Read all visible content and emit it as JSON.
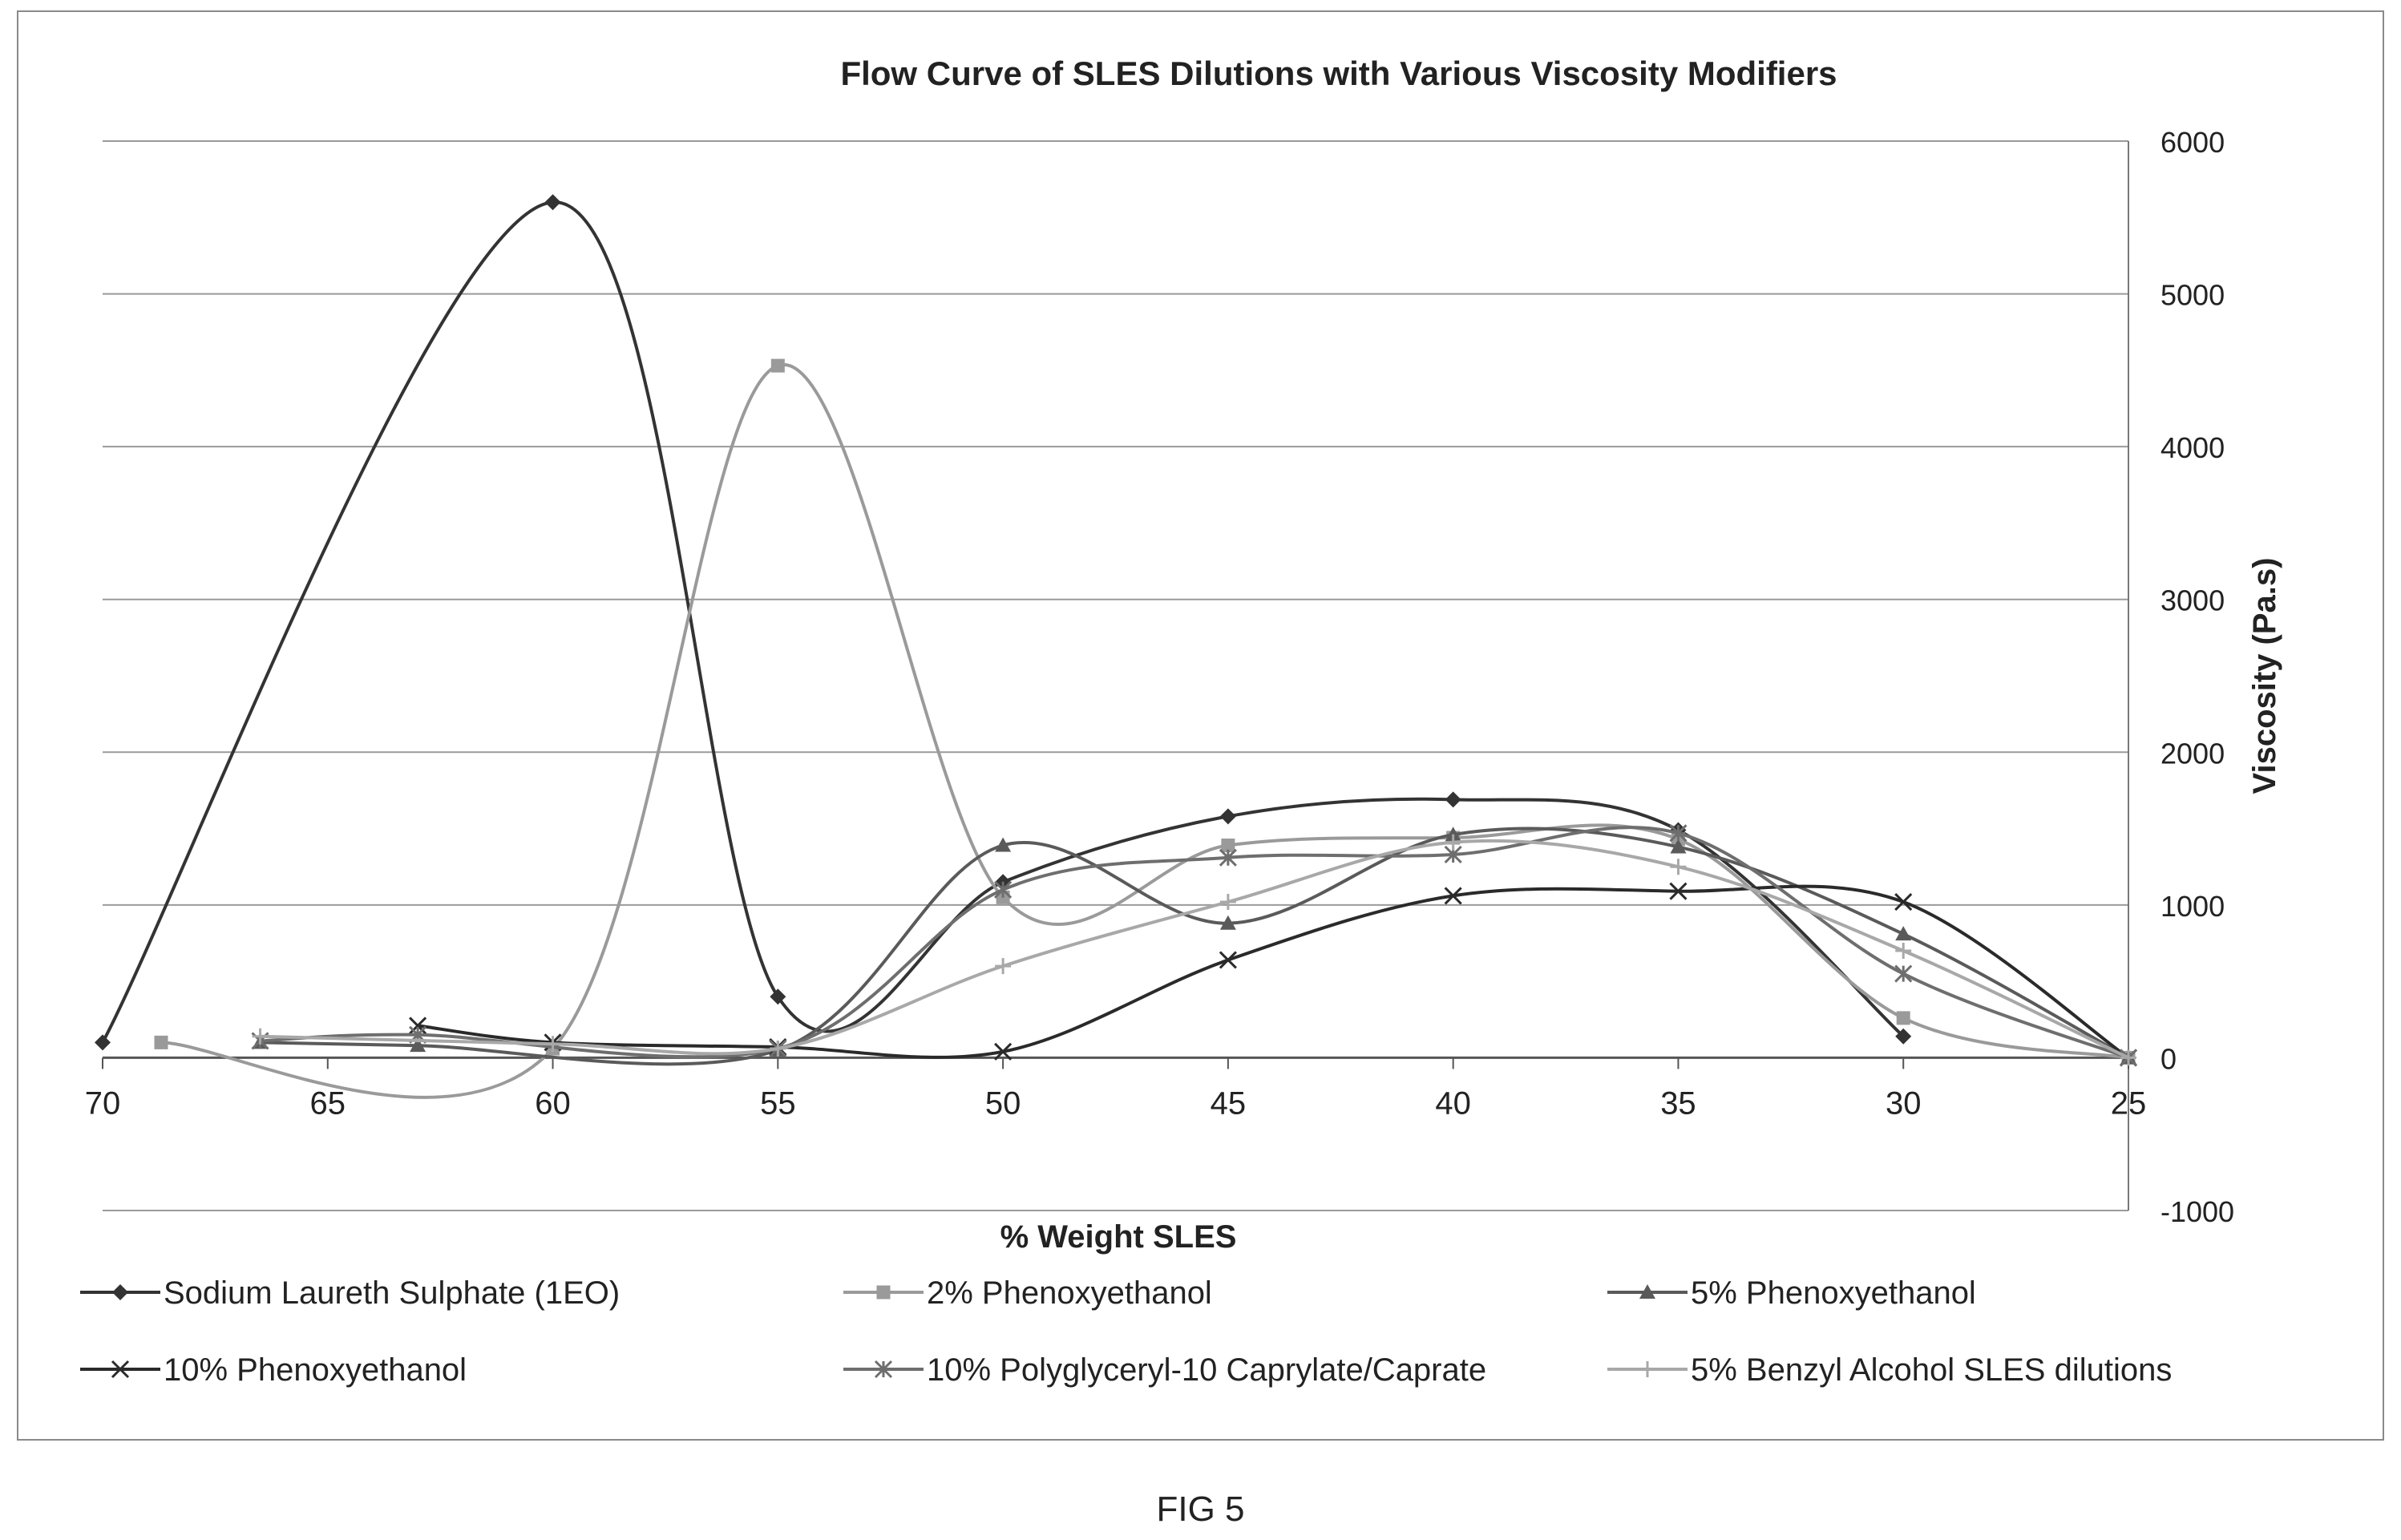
{
  "chart_data": {
    "type": "line",
    "title": "Flow Curve of SLES Dilutions with Various Viscosity Modifiers",
    "xlabel": "% Weight SLES",
    "ylabel": "Viscosity (Pa.s)",
    "xlim": [
      70,
      25
    ],
    "x_ticks": [
      70,
      65,
      60,
      55,
      50,
      45,
      40,
      35,
      30,
      25
    ],
    "ylim": [
      -1000,
      6000
    ],
    "y_ticks": [
      -1000,
      0,
      1000,
      2000,
      3000,
      4000,
      5000,
      6000
    ],
    "y_axis_side": "right",
    "x_axis_crosses_at": 0,
    "grid": "horizontal",
    "smoothed": true,
    "legend_position": "bottom",
    "series": [
      {
        "name": "Sodium Laureth Sulphate (1EO)",
        "marker": "diamond",
        "color": "#333333",
        "x": [
          70,
          60,
          55,
          50,
          45,
          40,
          35,
          30
        ],
        "y": [
          100,
          5600,
          400,
          1150,
          1580,
          1690,
          1490,
          140
        ]
      },
      {
        "name": "2% Phenoxyethanol",
        "marker": "square",
        "color": "#9a9a9a",
        "x": [
          68.7,
          60,
          55,
          50,
          45,
          40,
          35,
          30,
          25
        ],
        "y": [
          100,
          60,
          4530,
          1050,
          1390,
          1440,
          1430,
          260,
          0
        ]
      },
      {
        "name": "5% Phenoxyethanol",
        "marker": "triangle",
        "color": "#5a5a5a",
        "x": [
          66.5,
          63,
          55,
          50,
          45,
          40,
          35,
          30,
          25
        ],
        "y": [
          100,
          80,
          50,
          1390,
          880,
          1460,
          1380,
          810,
          0
        ]
      },
      {
        "name": "10% Phenoxyethanol",
        "marker": "x",
        "color": "#2a2a2a",
        "x": [
          63,
          60,
          55,
          50,
          45,
          40,
          35,
          30,
          25
        ],
        "y": [
          210,
          100,
          70,
          40,
          640,
          1060,
          1090,
          1020,
          0
        ]
      },
      {
        "name": "10% Polyglyceryl-10 Caprylate/Caprate",
        "marker": "star",
        "color": "#6e6e6e",
        "x": [
          66.5,
          63,
          55,
          50,
          45,
          40,
          35,
          30,
          25
        ],
        "y": [
          110,
          150,
          60,
          1100,
          1310,
          1330,
          1470,
          550,
          0
        ]
      },
      {
        "name": "5% Benzyl Alcohol SLES dilutions",
        "marker": "plus",
        "color": "#a8a8a8",
        "x": [
          66.5,
          60,
          55,
          50,
          45,
          40,
          35,
          30,
          25
        ],
        "y": [
          140,
          90,
          60,
          600,
          1020,
          1410,
          1250,
          700,
          0
        ]
      }
    ]
  },
  "caption": "FIG 5"
}
